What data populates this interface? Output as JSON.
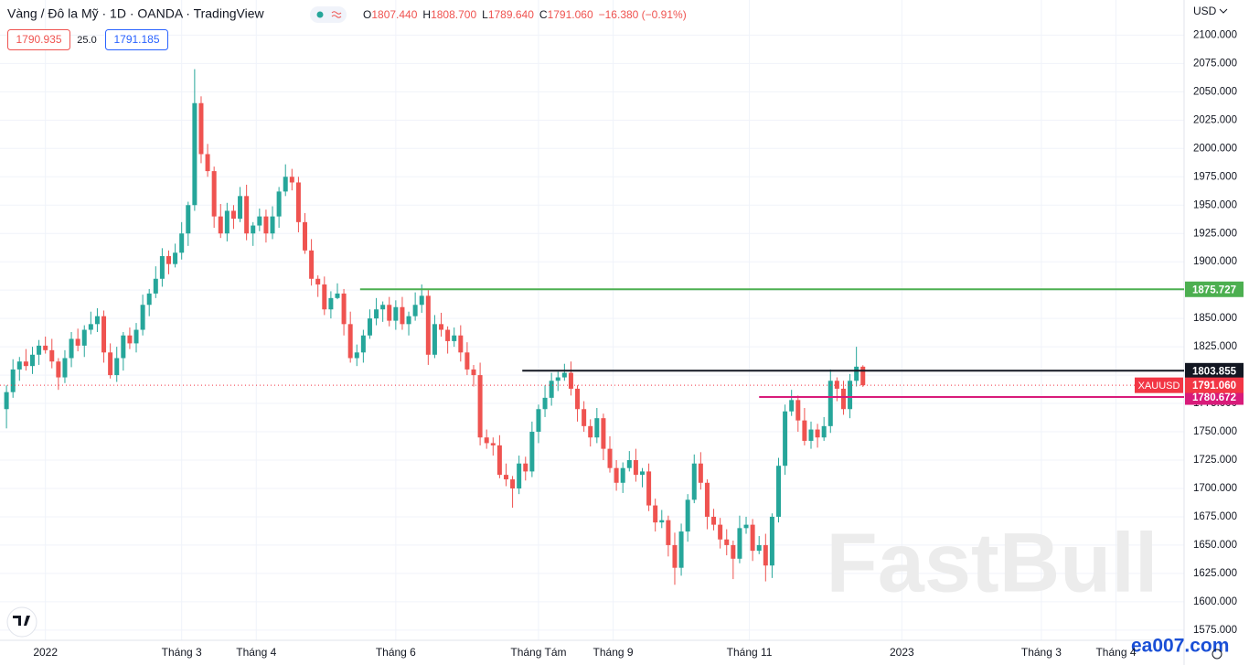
{
  "header": {
    "title": "Vàng / Đô la Mỹ · 1D · OANDA · TradingView",
    "o_label": "O",
    "o": "1807.440",
    "h_label": "H",
    "h": "1808.700",
    "l_label": "L",
    "l": "1789.640",
    "c_label": "C",
    "c": "1791.060",
    "change": "−16.380 (−0.91%)",
    "bid": "1790.935",
    "spread": "25.0",
    "ask": "1791.185"
  },
  "watermark": "FastBull",
  "site": "ea007.com",
  "chart_data": {
    "type": "candlestick",
    "currency": "USD",
    "up_color": "#26a69a",
    "down_color": "#ef5350",
    "grid": true,
    "xlim": [
      -14,
      351
    ],
    "ylim": [
      1566,
      2131
    ],
    "xticks": [
      {
        "value": 0,
        "label": "2022"
      },
      {
        "value": 42,
        "label": "Tháng 3"
      },
      {
        "value": 65,
        "label": "Tháng 4"
      },
      {
        "value": 108,
        "label": "Tháng 6"
      },
      {
        "value": 152,
        "label": "Tháng Tám"
      },
      {
        "value": 175,
        "label": "Tháng 9"
      },
      {
        "value": 217,
        "label": "Tháng 11"
      },
      {
        "value": 264,
        "label": "2023"
      },
      {
        "value": 307,
        "label": "Tháng 3"
      },
      {
        "value": 330,
        "label": "Tháng 4"
      }
    ],
    "yticks": [
      {
        "value": 1575,
        "label": "1575.000"
      },
      {
        "value": 1600,
        "label": "1600.000"
      },
      {
        "value": 1625,
        "label": "1625.000"
      },
      {
        "value": 1650,
        "label": "1650.000"
      },
      {
        "value": 1675,
        "label": "1675.000"
      },
      {
        "value": 1700,
        "label": "1700.000"
      },
      {
        "value": 1725,
        "label": "1725.000"
      },
      {
        "value": 1750,
        "label": "1750.000"
      },
      {
        "value": 1775,
        "label": "1775.000"
      },
      {
        "value": 1800,
        "label": "1800.000"
      },
      {
        "value": 1825,
        "label": "1825.000"
      },
      {
        "value": 1850,
        "label": "1850.000"
      },
      {
        "value": 1875,
        "label": "1875.000"
      },
      {
        "value": 1900,
        "label": "1900.000"
      },
      {
        "value": 1925,
        "label": "1925.000"
      },
      {
        "value": 1950,
        "label": "1950.000"
      },
      {
        "value": 1975,
        "label": "1975.000"
      },
      {
        "value": 2000,
        "label": "2000.000"
      },
      {
        "value": 2025,
        "label": "2025.000"
      },
      {
        "value": 2050,
        "label": "2050.000"
      },
      {
        "value": 2075,
        "label": "2075.000"
      },
      {
        "value": 2100,
        "label": "2100.000"
      }
    ],
    "x": [
      -12,
      -10,
      -8,
      -6,
      -4,
      -2,
      0,
      2,
      4,
      6,
      8,
      10,
      12,
      14,
      16,
      18,
      20,
      22,
      24,
      26,
      28,
      30,
      32,
      34,
      36,
      38,
      40,
      42,
      44,
      46,
      48,
      50,
      52,
      54,
      56,
      58,
      60,
      62,
      64,
      66,
      68,
      70,
      72,
      74,
      76,
      78,
      80,
      82,
      84,
      86,
      88,
      90,
      92,
      94,
      96,
      98,
      100,
      102,
      104,
      106,
      108,
      110,
      112,
      114,
      116,
      118,
      120,
      122,
      124,
      126,
      128,
      130,
      132,
      134,
      136,
      138,
      140,
      142,
      144,
      146,
      148,
      150,
      152,
      154,
      156,
      158,
      160,
      162,
      164,
      166,
      168,
      170,
      172,
      174,
      176,
      178,
      180,
      182,
      184,
      186,
      188,
      190,
      192,
      194,
      196,
      198,
      200,
      202,
      204,
      206,
      208,
      210,
      212,
      214,
      216,
      218,
      220,
      222,
      224,
      226,
      228,
      230,
      232,
      234,
      236,
      238,
      240,
      242,
      244,
      246,
      248,
      250,
      252
    ],
    "open": [
      1770,
      1785,
      1805,
      1812,
      1808,
      1818,
      1826,
      1822,
      1812,
      1798,
      1815,
      1832,
      1826,
      1840,
      1845,
      1852,
      1820,
      1800,
      1815,
      1835,
      1828,
      1840,
      1862,
      1872,
      1885,
      1905,
      1898,
      1908,
      1925,
      1950,
      2040,
      1995,
      1980,
      1940,
      1925,
      1945,
      1938,
      1958,
      1925,
      1932,
      1940,
      1925,
      1940,
      1962,
      1975,
      1970,
      1935,
      1910,
      1885,
      1880,
      1858,
      1868,
      1872,
      1845,
      1815,
      1820,
      1835,
      1850,
      1858,
      1862,
      1848,
      1860,
      1845,
      1852,
      1862,
      1870,
      1818,
      1845,
      1840,
      1830,
      1835,
      1820,
      1805,
      1800,
      1745,
      1740,
      1738,
      1712,
      1708,
      1700,
      1722,
      1715,
      1750,
      1770,
      1780,
      1795,
      1798,
      1802,
      1788,
      1770,
      1755,
      1745,
      1762,
      1735,
      1718,
      1705,
      1718,
      1725,
      1712,
      1715,
      1685,
      1670,
      1672,
      1650,
      1630,
      1662,
      1690,
      1722,
      1705,
      1675,
      1668,
      1655,
      1650,
      1638,
      1665,
      1668,
      1645,
      1650,
      1632,
      1675,
      1720,
      1768,
      1778,
      1760,
      1742,
      1752,
      1745,
      1755,
      1795,
      1788,
      1770,
      1795,
      1807.44
    ],
    "high": [
      1791,
      1814,
      1816,
      1823,
      1825,
      1831,
      1834,
      1832,
      1815,
      1822,
      1838,
      1841,
      1844,
      1856,
      1859,
      1857,
      1828,
      1825,
      1838,
      1842,
      1846,
      1871,
      1876,
      1896,
      1912,
      1910,
      1916,
      1935,
      1953,
      2070,
      2046,
      2004,
      1984,
      1951,
      1952,
      1950,
      1966,
      1968,
      1935,
      1947,
      1946,
      1949,
      1966,
      1986,
      1982,
      1975,
      1943,
      1920,
      1888,
      1887,
      1874,
      1881,
      1876,
      1856,
      1827,
      1840,
      1858,
      1868,
      1865,
      1869,
      1866,
      1869,
      1856,
      1873,
      1880,
      1875,
      1853,
      1855,
      1843,
      1842,
      1844,
      1829,
      1809,
      1811,
      1752,
      1745,
      1747,
      1722,
      1711,
      1729,
      1728,
      1759,
      1774,
      1791,
      1802,
      1803,
      1810,
      1812,
      1791,
      1777,
      1761,
      1771,
      1766,
      1746,
      1725,
      1723,
      1733,
      1735,
      1718,
      1722,
      1691,
      1681,
      1676,
      1661,
      1669,
      1695,
      1730,
      1732,
      1708,
      1682,
      1674,
      1664,
      1654,
      1676,
      1675,
      1673,
      1658,
      1660,
      1678,
      1727,
      1774,
      1787,
      1782,
      1771,
      1759,
      1757,
      1763,
      1805,
      1798,
      1795,
      1801,
      1825,
      1808.7
    ],
    "low": [
      1753,
      1780,
      1795,
      1804,
      1801,
      1809,
      1819,
      1806,
      1787,
      1793,
      1807,
      1821,
      1816,
      1836,
      1838,
      1811,
      1797,
      1794,
      1804,
      1823,
      1820,
      1835,
      1852,
      1868,
      1878,
      1889,
      1895,
      1902,
      1914,
      1945,
      1987,
      1975,
      1930,
      1921,
      1918,
      1929,
      1935,
      1919,
      1914,
      1927,
      1917,
      1920,
      1930,
      1958,
      1963,
      1926,
      1907,
      1879,
      1869,
      1853,
      1850,
      1867,
      1835,
      1811,
      1808,
      1811,
      1832,
      1844,
      1847,
      1843,
      1840,
      1840,
      1835,
      1848,
      1855,
      1809,
      1815,
      1834,
      1819,
      1825,
      1812,
      1800,
      1790,
      1738,
      1735,
      1729,
      1709,
      1702,
      1683,
      1695,
      1707,
      1710,
      1740,
      1763,
      1773,
      1786,
      1795,
      1782,
      1759,
      1750,
      1737,
      1740,
      1725,
      1714,
      1698,
      1696,
      1715,
      1706,
      1701,
      1680,
      1662,
      1665,
      1640,
      1615,
      1623,
      1653,
      1687,
      1699,
      1664,
      1663,
      1647,
      1641,
      1620,
      1634,
      1660,
      1636,
      1642,
      1618,
      1621,
      1670,
      1712,
      1764,
      1750,
      1738,
      1735,
      1736,
      1742,
      1749,
      1777,
      1765,
      1762,
      1790,
      1789.64
    ],
    "close": [
      1785,
      1805,
      1812,
      1808,
      1818,
      1826,
      1822,
      1812,
      1798,
      1815,
      1832,
      1826,
      1840,
      1845,
      1852,
      1820,
      1800,
      1815,
      1835,
      1828,
      1840,
      1862,
      1872,
      1885,
      1905,
      1898,
      1908,
      1925,
      1950,
      2040,
      1995,
      1980,
      1940,
      1925,
      1945,
      1938,
      1958,
      1925,
      1932,
      1940,
      1925,
      1940,
      1962,
      1975,
      1970,
      1935,
      1910,
      1885,
      1880,
      1858,
      1868,
      1872,
      1845,
      1815,
      1820,
      1835,
      1850,
      1858,
      1862,
      1848,
      1860,
      1845,
      1852,
      1862,
      1870,
      1818,
      1845,
      1840,
      1830,
      1835,
      1820,
      1805,
      1800,
      1745,
      1740,
      1738,
      1712,
      1708,
      1700,
      1722,
      1715,
      1750,
      1770,
      1780,
      1795,
      1798,
      1802,
      1788,
      1770,
      1755,
      1745,
      1762,
      1735,
      1718,
      1705,
      1718,
      1725,
      1712,
      1715,
      1685,
      1670,
      1672,
      1650,
      1630,
      1662,
      1690,
      1722,
      1705,
      1675,
      1668,
      1655,
      1650,
      1638,
      1665,
      1668,
      1645,
      1650,
      1632,
      1675,
      1720,
      1768,
      1778,
      1760,
      1742,
      1752,
      1745,
      1755,
      1795,
      1788,
      1770,
      1795,
      1807.44,
      1791.06
    ],
    "levels": [
      {
        "value": 1875.727,
        "color": "#4caf50",
        "start": 97
      },
      {
        "value": 1803.855,
        "color": "#131722",
        "start": 147
      },
      {
        "value": 1780.672,
        "color": "#d81b7a",
        "start": 220
      }
    ],
    "last_price": {
      "value": 1791.06,
      "label": "1791.060",
      "name": "XAUUSD",
      "color": "#f23645"
    }
  }
}
